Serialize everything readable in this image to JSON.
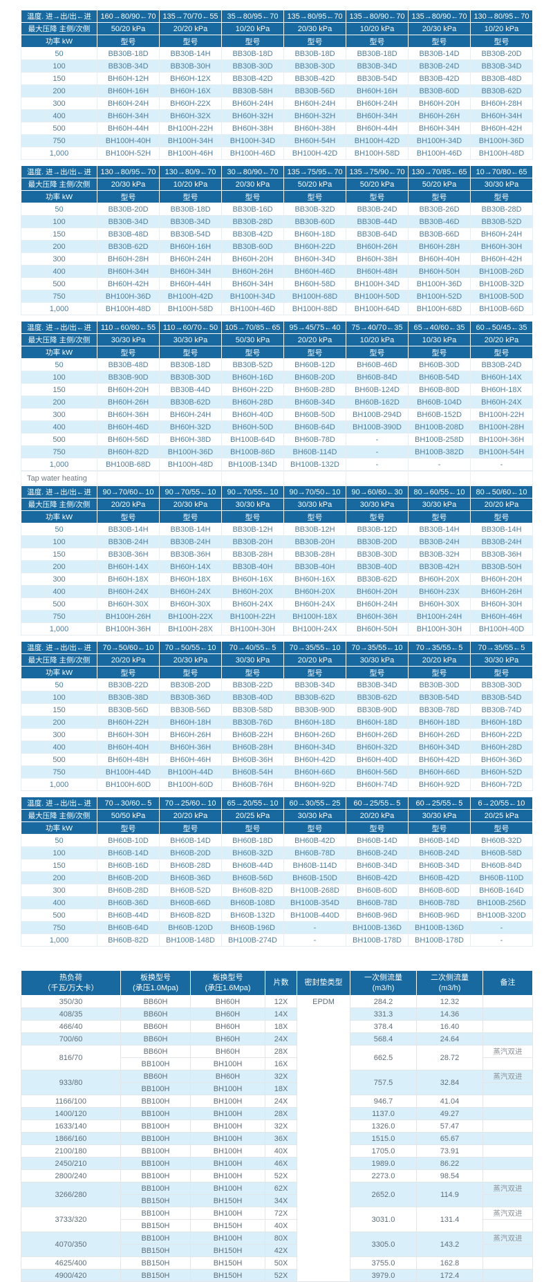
{
  "labels": {
    "temp_row": "温度. 进→出/出←进",
    "pressure_row": "最大压降 主侧/次侧",
    "power_row": "功率 kW",
    "model_header": "型号",
    "tap_water_heating": "Tap water heating"
  },
  "colors": {
    "header_blue": "#17699f",
    "stripe_blue": "#d9f0fb",
    "body_text": "#4d7d9c"
  },
  "powers": [
    "50",
    "100",
    "150",
    "200",
    "300",
    "400",
    "500",
    "750",
    "1,000"
  ],
  "upper_tables": [
    {
      "temps": [
        "160→80/90←70",
        "135→70/70←55",
        "35→80/95←70",
        "135→80/95←70",
        "135→80/90←70",
        "135→80/90←70",
        "130→80/95←70"
      ],
      "pressures": [
        "50/20 kPa",
        "20/20 kPa",
        "10/20 kPa",
        "20/30 kPa",
        "10/20 kPa",
        "20/30 kPa",
        "10/20 kPa"
      ],
      "rows": [
        [
          "BB30B-18D",
          "BB30B-14H",
          "BB30B-18D",
          "BB30B-18D",
          "BB30B-18D",
          "BB30B-14D",
          "BB30B-20D"
        ],
        [
          "BB30B-34D",
          "BB30B-30H",
          "BB30B-30D",
          "BB30B-30D",
          "BB30B-34D",
          "BB30B-24D",
          "BB30B-34D"
        ],
        [
          "BH60H-12H",
          "BH60H-12X",
          "BB30B-42D",
          "BB30B-42D",
          "BB30B-54D",
          "BB30B-42D",
          "BB30B-48D"
        ],
        [
          "BH60H-16H",
          "BH60H-16X",
          "BB30B-58H",
          "BB30B-56D",
          "BH60H-16H",
          "BB30B-60D",
          "BB30B-62D"
        ],
        [
          "BH60H-24H",
          "BH60H-22X",
          "BH60H-24H",
          "BH60H-24H",
          "BH60H-24H",
          "BH60H-20H",
          "BH60H-28H"
        ],
        [
          "BH60H-34H",
          "BH60H-32X",
          "BH60H-32H",
          "BH60H-32H",
          "BH60H-34H",
          "BH60H-26H",
          "BH60H-34H"
        ],
        [
          "BH60H-44H",
          "BH100H-22H",
          "BH60H-38H",
          "BH60H-38H",
          "BH60H-44H",
          "BH60H-34H",
          "BH60H-42H"
        ],
        [
          "BH100H-40H",
          "BH100H-34H",
          "BH100H-34D",
          "BH60H-54H",
          "BH100H-42D",
          "BH100H-34D",
          "BH100H-36D"
        ],
        [
          "BH100H-52H",
          "BH100H-46H",
          "BH100H-46D",
          "BH100H-42D",
          "BH100H-58D",
          "BH100H-46D",
          "BH100H-48D"
        ]
      ]
    },
    {
      "temps": [
        "130→80/95←70",
        "130→80/9←70",
        "30→80/90←70",
        "135→75/95←70",
        "135→75/90←70",
        "130→70/85←65",
        "10→70/80←65"
      ],
      "pressures": [
        "20/30 kPa",
        "10/20 kPa",
        "20/30 kPa",
        "50/20 kPa",
        "50/20 kPa",
        "50/20 kPa",
        "30/30 kPa"
      ],
      "rows": [
        [
          "BB30B-20D",
          "BB30B-18D",
          "BB30B-16D",
          "BB30B-32D",
          "BB30B-24D",
          "BB30B-26D",
          "BB30B-28D"
        ],
        [
          "BB30B-34D",
          "BB30B-34D",
          "BB30B-28D",
          "BB30B-60D",
          "BB30B-44D",
          "BB30B-46D",
          "BB30B-52D"
        ],
        [
          "BB30B-48D",
          "BB30B-54D",
          "BB30B-42D",
          "BH60H-18D",
          "BB30B-64D",
          "BB30B-66D",
          "BH60H-24H"
        ],
        [
          "BB30B-62D",
          "BH60H-16H",
          "BB30B-60D",
          "BH60H-22D",
          "BH60H-26H",
          "BH60H-28H",
          "BH60H-30H"
        ],
        [
          "BH60H-28H",
          "BH60H-24H",
          "BH60H-20H",
          "BH60H-34D",
          "BH60H-38H",
          "BH60H-40H",
          "BH60H-42H"
        ],
        [
          "BH60H-34H",
          "BH60H-34H",
          "BH60H-26H",
          "BH60H-46D",
          "BH60H-48H",
          "BH60H-50H",
          "BH100B-26D"
        ],
        [
          "BH60H-42H",
          "BH60H-44H",
          "BH60H-34H",
          "BH60H-58D",
          "BH100H-34D",
          "BH100H-36D",
          "BH100B-32D"
        ],
        [
          "BH100H-36D",
          "BH100H-42D",
          "BH100H-34D",
          "BH100H-68D",
          "BH100H-50D",
          "BH100H-52D",
          "BH100B-50D"
        ],
        [
          "BH100H-48D",
          "BH100H-58D",
          "BH100H-46D",
          "BH100H-88D",
          "BH100H-64D",
          "BH100H-68D",
          "BH100B-66D"
        ]
      ]
    },
    {
      "temps": [
        "110→60/80←55",
        "110→60/70←50",
        "105→70/85←65",
        "95→45/75←40",
        "75→40/70←35",
        "65→40/60←35",
        "60→50/45←35"
      ],
      "pressures": [
        "30/30 kPa",
        "30/30 kPa",
        "50/30 kPa",
        "20/20 kPa",
        "10/20 kPa",
        "10/30 kPa",
        "20/20 kPa"
      ],
      "rows": [
        [
          "BB30B-48D",
          "BB30B-18D",
          "BB30B-52D",
          "BH60B-12D",
          "BH60B-46D",
          "BH60B-30D",
          "BB30B-24D"
        ],
        [
          "BB30B-90D",
          "BB30B-30D",
          "BH60H-16D",
          "BH60B-20D",
          "BH60B-84D",
          "BH60B-54D",
          "BH60H-14X"
        ],
        [
          "BH60H-20H",
          "BB30B-44D",
          "BH60H-22D",
          "BH60B-28D",
          "BH60B-124D",
          "BH60B-80D",
          "BH60H-18X"
        ],
        [
          "BH60H-26H",
          "BB30B-62D",
          "BH60H-28D",
          "BH60B-34D",
          "BH60B-162D",
          "BH60B-104D",
          "BH60H-24X"
        ],
        [
          "BH60H-36H",
          "BH60H-24H",
          "BH60H-40D",
          "BH60B-50D",
          "BH100B-294D",
          "BH60B-152D",
          "BH100H-22H"
        ],
        [
          "BH60H-46D",
          "BH60H-32D",
          "BH60H-50D",
          "BH60B-64D",
          "BH100B-390D",
          "BH100B-208D",
          "BH100H-28H"
        ],
        [
          "BH60H-56D",
          "BH60H-38D",
          "BH100B-64D",
          "BH60B-78D",
          "-",
          "BH100B-258D",
          "BH100H-36H"
        ],
        [
          "BH60H-82D",
          "BH100H-36D",
          "BH100B-86D",
          "BH60B-114D",
          "-",
          "BH100B-382D",
          "BH100H-54H"
        ],
        [
          "BH100B-68D",
          "BH100H-48D",
          "BH100B-134D",
          "BH100B-132D",
          "-",
          "-",
          "-"
        ]
      ]
    },
    {
      "temps": [
        "90→70/60←10",
        "90→70/55←10",
        "90→70/55←10",
        "90→70/50←10",
        "90→60/60←30",
        "80→60/55←10",
        "80→50/60←10"
      ],
      "pressures": [
        "20/20 kPa",
        "20/30 kPa",
        "30/30 kPa",
        "30/30 kPa",
        "30/30 kPa",
        "30/30 kPa",
        "20/20 kPa"
      ],
      "rows": [
        [
          "BB30B-14H",
          "BB30B-14H",
          "BB30B-12H",
          "BB30B-12H",
          "BB30B-12D",
          "BB30B-14H",
          "BB30B-14H"
        ],
        [
          "BB30B-24H",
          "BB30B-24H",
          "BB30B-20H",
          "BB30B-20H",
          "BB30B-20D",
          "BB30B-24H",
          "BB30B-24H"
        ],
        [
          "BB30B-36H",
          "BB30B-36H",
          "BB30B-28H",
          "BB30B-28H",
          "BB30B-30D",
          "BB30B-32H",
          "BB30B-36H"
        ],
        [
          "BH60H-14X",
          "BH60H-14X",
          "BB30B-40H",
          "BB30B-40H",
          "BB30B-40D",
          "BB30B-42H",
          "BB30B-50H"
        ],
        [
          "BH60H-18X",
          "BH60H-18X",
          "BH60H-16X",
          "BH60H-16X",
          "BB30B-62D",
          "BH60H-20X",
          "BH60H-20H"
        ],
        [
          "BH60H-24X",
          "BH60H-24X",
          "BH60H-20X",
          "BH60H-20X",
          "BH60H-20H",
          "BH60H-23X",
          "BH60H-26H"
        ],
        [
          "BH60H-30X",
          "BH60H-30X",
          "BH60H-24X",
          "BH60H-24X",
          "BH60H-24H",
          "BH60H-30X",
          "BH60H-30H"
        ],
        [
          "BH100H-26H",
          "BH100H-22X",
          "BH100H-22H",
          "BH100H-18X",
          "BH60H-36H",
          "BH100H-24H",
          "BH60H-46H"
        ],
        [
          "BH100H-36H",
          "BH100H-28X",
          "BH100H-30H",
          "BH100H-24X",
          "BH60H-50H",
          "BH100H-30H",
          "BH100H-40D"
        ]
      ]
    },
    {
      "temps": [
        "70→50/60←10",
        "70→50/55←10",
        "70→40/55←5",
        "70→35/55←10",
        "70→35/55←10",
        "70→35/55←5",
        "70→35/55←5"
      ],
      "pressures": [
        "20/20 kPa",
        "20/30 kPa",
        "30/30 kPa",
        "20/20 kPa",
        "30/30 kPa",
        "20/20 kPa",
        "30/30 kPa"
      ],
      "rows": [
        [
          "BB30B-22D",
          "BB30B-20D",
          "BB30B-22D",
          "BB30B-34D",
          "BB30B-34D",
          "BB30B-30D",
          "BB30B-30D"
        ],
        [
          "BB30B-38D",
          "BB30B-36D",
          "BB30B-40D",
          "BB30B-62D",
          "BB30B-62D",
          "BB30B-54D",
          "BB30B-54D"
        ],
        [
          "BB30B-56D",
          "BB30B-56D",
          "BB30B-58D",
          "BB30B-90D",
          "BB30B-90D",
          "BB30B-78D",
          "BB30B-74D"
        ],
        [
          "BH60H-22H",
          "BH60H-18H",
          "BB30B-76D",
          "BH60H-18D",
          "BH60H-18D",
          "BH60H-18D",
          "BH60H-18D"
        ],
        [
          "BH60H-30H",
          "BH60H-26H",
          "BH60B-22H",
          "BH60H-26D",
          "BH60H-26D",
          "BH60H-26D",
          "BH60H-22D"
        ],
        [
          "BH60H-40H",
          "BH60H-36H",
          "BH60B-28H",
          "BH60H-34D",
          "BH60H-32D",
          "BH60H-34D",
          "BH60H-28D"
        ],
        [
          "BH60H-48H",
          "BH60H-46H",
          "BH60B-36H",
          "BH60H-42D",
          "BH60H-40D",
          "BH60H-42D",
          "BH60H-36D"
        ],
        [
          "BH100H-44D",
          "BH100H-44D",
          "BH60B-54H",
          "BH60H-66D",
          "BH60H-56D",
          "BH60H-66D",
          "BH60H-52D"
        ],
        [
          "BH100H-60D",
          "BH100H-60D",
          "BH60B-76H",
          "BH60H-92D",
          "BH60H-74D",
          "BH60H-92D",
          "BH60H-72D"
        ]
      ]
    },
    {
      "temps": [
        "70→30/60←5",
        "70→25/60←10",
        "65→20/55←10",
        "60→30/55←25",
        "60→25/55←5",
        "60→25/55←5",
        "6→20/55←10"
      ],
      "pressures": [
        "50/50 kPa",
        "20/20 kPa",
        "20/25 kPa",
        "30/30 kPa",
        "20/20 kPa",
        "30/30 kPa",
        "20/25 kPa"
      ],
      "rows": [
        [
          "BH60B-10D",
          "BH60B-14D",
          "BH60B-18D",
          "BH60B-42D",
          "BH60B-14D",
          "BH60B-14D",
          "BH60B-32D"
        ],
        [
          "BH60B-14D",
          "BH60B-20D",
          "BH60B-32D",
          "BH60B-78D",
          "BH60B-24D",
          "BH60B-24D",
          "BH60B-58D"
        ],
        [
          "BH60B-16D",
          "BH60B-28D",
          "BH60B-44D",
          "BH60B-114D",
          "BH60B-34D",
          "BH60B-34D",
          "BH60B-84D"
        ],
        [
          "BH60B-20D",
          "BH60B-36D",
          "BH60B-56D",
          "BH60B-150D",
          "BH60B-42D",
          "BH60B-42D",
          "BH60B-110D"
        ],
        [
          "BH60B-28D",
          "BH60B-52D",
          "BH60B-82D",
          "BH100B-268D",
          "BH60B-60D",
          "BH60B-60D",
          "BH60B-164D"
        ],
        [
          "BH60B-36D",
          "BH60B-66D",
          "BH60B-108D",
          "BH100B-354D",
          "BH60B-78D",
          "BH60B-78D",
          "BH100B-256D"
        ],
        [
          "BH60B-44D",
          "BH60B-82D",
          "BH60B-132D",
          "BH100B-440D",
          "BH60B-96D",
          "BH60B-96D",
          "BH100B-320D"
        ],
        [
          "BH60B-64D",
          "BH60B-120D",
          "BH60B-196D",
          "-",
          "BH100B-136D",
          "BH100B-136D",
          "-"
        ],
        [
          "BH60B-82D",
          "BH100B-148D",
          "BH100B-274D",
          "-",
          "BH100B-178D",
          "BH100B-178D",
          "-"
        ]
      ]
    }
  ],
  "bottom_table": {
    "headers": [
      {
        "line1": "热负荷",
        "line2": "（千瓦/万大卡）"
      },
      {
        "line1": "板换型号",
        "line2": "(承压1.0Mpa)"
      },
      {
        "line1": "板换型号",
        "line2": "(承压1.6Mpa)"
      },
      {
        "line1": "片数",
        "line2": ""
      },
      {
        "line1": "密封垫类型",
        "line2": ""
      },
      {
        "line1": "一次侧流量",
        "line2": "(m3/h)"
      },
      {
        "line1": "二次侧流量",
        "line2": "(m3/h)"
      },
      {
        "line1": "备注",
        "line2": ""
      }
    ],
    "gasket_type": "EPDM",
    "steam_remark": "蒸汽双进",
    "rows": [
      {
        "load": "350/30",
        "model_10": [
          "BB60H"
        ],
        "model_16": [
          "BH60H"
        ],
        "plates": [
          "12X"
        ],
        "primary_flow": "284.2",
        "secondary_flow": "12.32",
        "remark": ""
      },
      {
        "load": "408/35",
        "model_10": [
          "BB60H"
        ],
        "model_16": [
          "BH60H"
        ],
        "plates": [
          "14X"
        ],
        "primary_flow": "331.3",
        "secondary_flow": "14.36",
        "remark": ""
      },
      {
        "load": "466/40",
        "model_10": [
          "BB60H"
        ],
        "model_16": [
          "BH60H"
        ],
        "plates": [
          "18X"
        ],
        "primary_flow": "378.4",
        "secondary_flow": "16.40",
        "remark": ""
      },
      {
        "load": "700/60",
        "model_10": [
          "BB60H"
        ],
        "model_16": [
          "BH60H"
        ],
        "plates": [
          "24X"
        ],
        "primary_flow": "568.4",
        "secondary_flow": "24.64",
        "remark": ""
      },
      {
        "load": "816/70",
        "model_10": [
          "BB60H",
          "BB100H"
        ],
        "model_16": [
          "BH60H",
          "BH100H"
        ],
        "plates": [
          "28X",
          "16X"
        ],
        "primary_flow": "662.5",
        "secondary_flow": "28.72",
        "remark": "蒸汽双进"
      },
      {
        "load": "933/80",
        "model_10": [
          "BB60H",
          "BB100H"
        ],
        "model_16": [
          "BH60H",
          "BH100H"
        ],
        "plates": [
          "32X",
          "18X"
        ],
        "primary_flow": "757.5",
        "secondary_flow": "32.84",
        "remark": "蒸汽双进"
      },
      {
        "load": "1166/100",
        "model_10": [
          "BB100H"
        ],
        "model_16": [
          "BH100H"
        ],
        "plates": [
          "24X"
        ],
        "primary_flow": "946.7",
        "secondary_flow": "41.04",
        "remark": ""
      },
      {
        "load": "1400/120",
        "model_10": [
          "BB100H"
        ],
        "model_16": [
          "BH100H"
        ],
        "plates": [
          "28X"
        ],
        "primary_flow": "1137.0",
        "secondary_flow": "49.27",
        "remark": ""
      },
      {
        "load": "1633/140",
        "model_10": [
          "BB100H"
        ],
        "model_16": [
          "BH100H"
        ],
        "plates": [
          "32X"
        ],
        "primary_flow": "1326.0",
        "secondary_flow": "57.47",
        "remark": ""
      },
      {
        "load": "1866/160",
        "model_10": [
          "BB100H"
        ],
        "model_16": [
          "BH100H"
        ],
        "plates": [
          "36X"
        ],
        "primary_flow": "1515.0",
        "secondary_flow": "65.67",
        "remark": ""
      },
      {
        "load": "2100/180",
        "model_10": [
          "BB100H"
        ],
        "model_16": [
          "BH100H"
        ],
        "plates": [
          "40X"
        ],
        "primary_flow": "1705.0",
        "secondary_flow": "73.91",
        "remark": ""
      },
      {
        "load": "2450/210",
        "model_10": [
          "BB100H"
        ],
        "model_16": [
          "BH100H"
        ],
        "plates": [
          "46X"
        ],
        "primary_flow": "1989.0",
        "secondary_flow": "86.22",
        "remark": ""
      },
      {
        "load": "2800/240",
        "model_10": [
          "BB100H"
        ],
        "model_16": [
          "BH100H"
        ],
        "plates": [
          "52X"
        ],
        "primary_flow": "2273.0",
        "secondary_flow": "98.54",
        "remark": ""
      },
      {
        "load": "3266/280",
        "model_10": [
          "BB100H",
          "BB150H"
        ],
        "model_16": [
          "BH100H",
          "BH150H"
        ],
        "plates": [
          "62X",
          "34X"
        ],
        "primary_flow": "2652.0",
        "secondary_flow": "114.9",
        "remark": "蒸汽双进"
      },
      {
        "load": "3733/320",
        "model_10": [
          "BB100H",
          "BB150H"
        ],
        "model_16": [
          "BH100H",
          "BH150H"
        ],
        "plates": [
          "72X",
          "40X"
        ],
        "primary_flow": "3031.0",
        "secondary_flow": "131.4",
        "remark": "蒸汽双进"
      },
      {
        "load": "4070/350",
        "model_10": [
          "BB100H",
          "BB150H"
        ],
        "model_16": [
          "BH100H",
          "BH150H"
        ],
        "plates": [
          "80X",
          "42X"
        ],
        "primary_flow": "3305.0",
        "secondary_flow": "143.2",
        "remark": "蒸汽双进"
      },
      {
        "load": "4625/400",
        "model_10": [
          "BB150H"
        ],
        "model_16": [
          "BH150H"
        ],
        "plates": [
          "50X"
        ],
        "primary_flow": "3755.0",
        "secondary_flow": "162.8",
        "remark": ""
      },
      {
        "load": "4900/420",
        "model_10": [
          "BB150H"
        ],
        "model_16": [
          "BH150H"
        ],
        "plates": [
          "52X"
        ],
        "primary_flow": "3979.0",
        "secondary_flow": "172.4",
        "remark": ""
      }
    ]
  }
}
